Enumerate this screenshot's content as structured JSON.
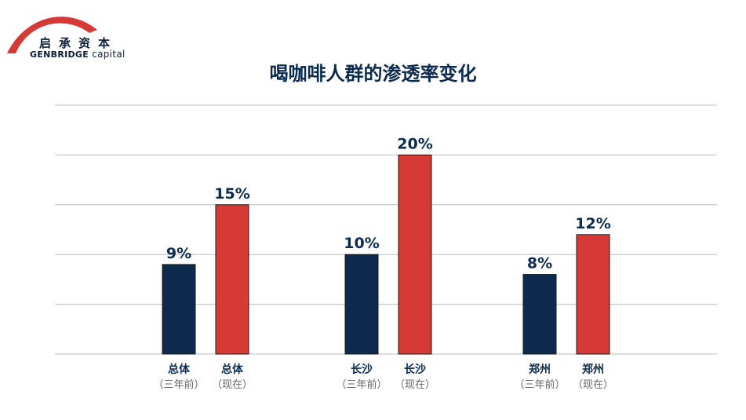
{
  "logo": {
    "cn": "启承资本",
    "en": "GENBRIDGE",
    "en_suffix": "capital"
  },
  "colors": {
    "before": "#0d2a4e",
    "now": "#d63a36",
    "grid": "#bdbdbd",
    "text": "#0b2b4f"
  },
  "chart_data": {
    "type": "bar",
    "title": "喝咖啡人群的渗透率变化",
    "unit": "%",
    "ylim": [
      0,
      25
    ],
    "grid": true,
    "groups": [
      {
        "bars": [
          {
            "label": "总体",
            "sublabel": "（三年前）",
            "value": 9,
            "text": "9%",
            "series": "before"
          },
          {
            "label": "总体",
            "sublabel": "（现在）",
            "value": 15,
            "text": "15%",
            "series": "now"
          }
        ]
      },
      {
        "bars": [
          {
            "label": "长沙",
            "sublabel": "（三年前）",
            "value": 10,
            "text": "10%",
            "series": "before"
          },
          {
            "label": "长沙",
            "sublabel": "（现在）",
            "value": 20,
            "text": "20%",
            "series": "now"
          }
        ]
      },
      {
        "bars": [
          {
            "label": "郑州",
            "sublabel": "（三年前）",
            "value": 8,
            "text": "8%",
            "series": "before"
          },
          {
            "label": "郑州",
            "sublabel": "（现在）",
            "value": 12,
            "text": "12%",
            "series": "now"
          }
        ]
      }
    ]
  }
}
